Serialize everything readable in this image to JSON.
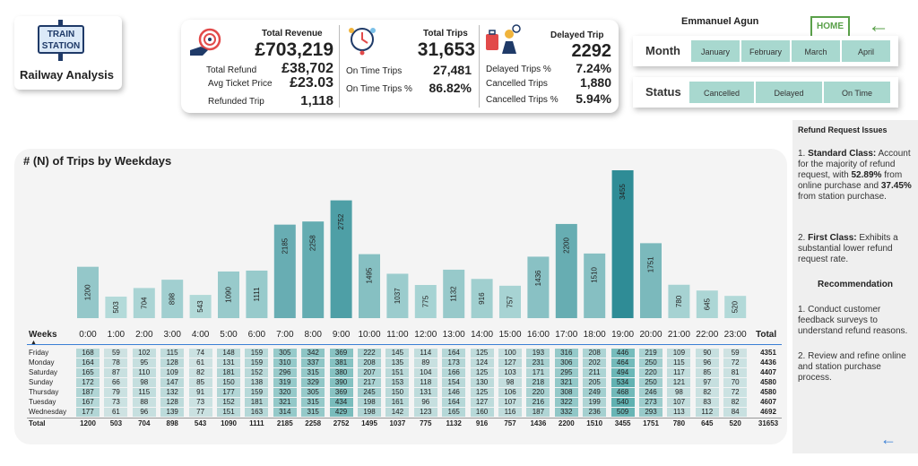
{
  "logo": {
    "sign_text_1": "TRAIN",
    "sign_text_2": "STATION",
    "title": "Railway Analysis"
  },
  "kpi": {
    "total_revenue_label": "Total Revenue",
    "total_revenue": "£703,219",
    "total_refund_label": "Total Refund",
    "total_refund": "£38,702",
    "avg_ticket_label": "Avg Ticket Price",
    "avg_ticket": "£23.03",
    "refunded_trip_label": "Refunded Trip",
    "refunded_trip": "1,118",
    "total_trips_label": "Total Trips",
    "total_trips": "31,653",
    "on_time_trips_label": "On Time Trips",
    "on_time_trips": "27,481",
    "on_time_pct_label": "On Time Trips %",
    "on_time_pct": "86.82%",
    "delayed_trip_label": "Delayed Trip",
    "delayed_trip": "2292",
    "delayed_pct_label": "Delayed Trips %",
    "delayed_pct": "7.24%",
    "cancelled_trips_label": "Cancelled Trips",
    "cancelled_trips": "1,880",
    "cancelled_pct_label": "Cancelled Trips %",
    "cancelled_pct": "5.94%"
  },
  "header": {
    "user": "Emmanuel Agun",
    "home_label": "HOME"
  },
  "month_filter": {
    "label": "Month",
    "options": [
      "January",
      "February",
      "March",
      "April"
    ]
  },
  "status_filter": {
    "label": "Status",
    "options": [
      "Cancelled",
      "Delayed",
      "On Time"
    ]
  },
  "side": {
    "heading": "Refund Request Issues",
    "p1_num": "1.",
    "p1_bold": "Standard Class:",
    "p1_a": "Account for the majority of refund request, with",
    "p1_pct1": "52.89%",
    "p1_b": "from online purchase and",
    "p1_pct2": "37.45%",
    "p1_c": "from station purchase.",
    "p2_num": "2.",
    "p2_bold": "First Class:",
    "p2_text": "Exhibits a substantial lower refund request rate.",
    "rec_heading": "Recommendation",
    "r1": "1. Conduct customer feedback surveys to understand refund reasons.",
    "r2": "2. Review and refine online and station purchase process."
  },
  "chart_data": {
    "type": "bar",
    "title": "# (N) of Trips by Weekdays",
    "categories": [
      "0:00",
      "1:00",
      "2:00",
      "3:00",
      "4:00",
      "5:00",
      "6:00",
      "7:00",
      "8:00",
      "9:00",
      "10:00",
      "11:00",
      "12:00",
      "13:00",
      "14:00",
      "15:00",
      "16:00",
      "17:00",
      "18:00",
      "19:00",
      "20:00",
      "21:00",
      "22:00",
      "23:00"
    ],
    "values": [
      1200,
      503,
      704,
      898,
      543,
      1090,
      1111,
      2185,
      2258,
      2752,
      1495,
      1037,
      775,
      1132,
      916,
      757,
      1436,
      2200,
      1510,
      3455,
      1751,
      780,
      645,
      520
    ],
    "ylim": [
      0,
      3455
    ]
  },
  "table": {
    "weeks_label": "Weeks",
    "total_label": "Total",
    "rows": [
      {
        "day": "Friday",
        "values": [
          168,
          59,
          102,
          115,
          74,
          148,
          159,
          305,
          342,
          369,
          222,
          145,
          114,
          164,
          125,
          100,
          193,
          316,
          208,
          446,
          219,
          109,
          90,
          59
        ],
        "total": "4351"
      },
      {
        "day": "Monday",
        "values": [
          164,
          78,
          95,
          128,
          61,
          131,
          159,
          310,
          337,
          381,
          208,
          135,
          89,
          173,
          124,
          127,
          231,
          306,
          202,
          464,
          250,
          115,
          96,
          72
        ],
        "total": "4436"
      },
      {
        "day": "Saturday",
        "values": [
          165,
          87,
          110,
          109,
          82,
          181,
          152,
          296,
          315,
          380,
          207,
          151,
          104,
          166,
          125,
          103,
          171,
          295,
          211,
          494,
          220,
          117,
          85,
          81
        ],
        "total": "4407"
      },
      {
        "day": "Sunday",
        "values": [
          172,
          66,
          98,
          147,
          85,
          150,
          138,
          319,
          329,
          390,
          217,
          153,
          118,
          154,
          130,
          98,
          218,
          321,
          205,
          534,
          250,
          121,
          97,
          70
        ],
        "total": "4580"
      },
      {
        "day": "Thursday",
        "values": [
          187,
          79,
          115,
          132,
          91,
          177,
          159,
          320,
          305,
          369,
          245,
          150,
          131,
          146,
          125,
          106,
          220,
          308,
          249,
          468,
          246,
          98,
          82,
          72
        ],
        "total": "4580"
      },
      {
        "day": "Tuesday",
        "values": [
          167,
          73,
          88,
          128,
          73,
          152,
          181,
          321,
          315,
          434,
          198,
          161,
          96,
          164,
          127,
          107,
          216,
          322,
          199,
          540,
          273,
          107,
          83,
          82
        ],
        "total": "4607"
      },
      {
        "day": "Wednesday",
        "values": [
          177,
          61,
          96,
          139,
          77,
          151,
          163,
          314,
          315,
          429,
          198,
          142,
          123,
          165,
          160,
          116,
          187,
          332,
          236,
          509,
          293,
          113,
          112,
          84
        ],
        "total": "4692"
      }
    ],
    "totals": [
      "1200",
      "503",
      "704",
      "898",
      "543",
      "1090",
      "1111",
      "2185",
      "2258",
      "2752",
      "1495",
      "1037",
      "775",
      "1132",
      "916",
      "757",
      "1436",
      "2200",
      "1510",
      "3455",
      "1751",
      "780",
      "645",
      "520"
    ],
    "grand_total": "31653"
  },
  "colors": {
    "bar_low": "#c9e7e4",
    "bar_high": "#2f8c96",
    "accent_green": "#5aa04a",
    "filter_teal": "#a8d8cf"
  }
}
